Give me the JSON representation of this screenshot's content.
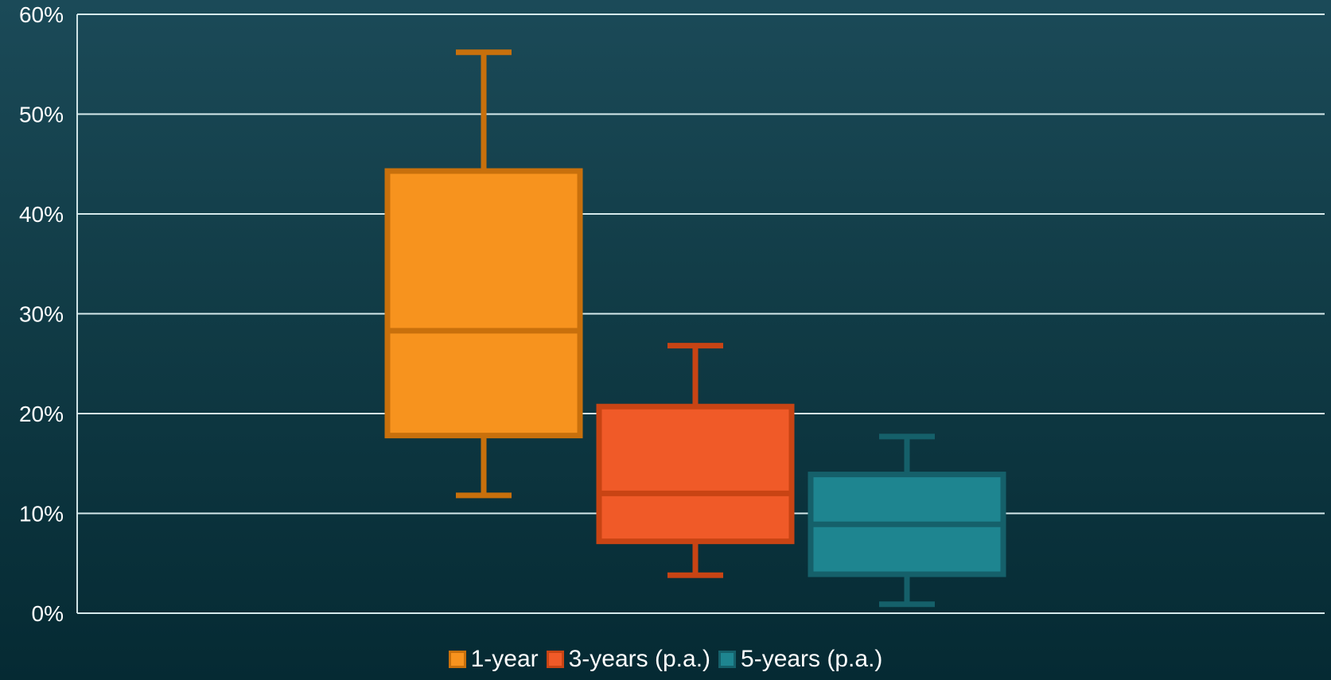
{
  "chart_data": {
    "type": "box",
    "title": "",
    "xlabel": "",
    "ylabel": "",
    "ylim": [
      0,
      60
    ],
    "yticks": [
      0,
      10,
      20,
      30,
      40,
      50,
      60
    ],
    "ytick_labels": [
      "0%",
      "10%",
      "20%",
      "30%",
      "40%",
      "50%",
      "60%"
    ],
    "grid": true,
    "legend_position": "bottom",
    "series": [
      {
        "name": "1-year",
        "min": 11.8,
        "q1": 17.8,
        "median": 28.3,
        "q3": 44.3,
        "max": 56.2,
        "fill": "#f7931e",
        "stroke": "#c8700c"
      },
      {
        "name": "3-years (p.a.)",
        "min": 3.8,
        "q1": 7.2,
        "median": 12.0,
        "q3": 20.7,
        "max": 26.8,
        "fill": "#f05a28",
        "stroke": "#c84414"
      },
      {
        "name": "5-years (p.a.)",
        "min": 0.9,
        "q1": 3.9,
        "median": 8.9,
        "q3": 13.9,
        "max": 17.7,
        "fill": "#1e8590",
        "stroke": "#15606a"
      }
    ]
  }
}
